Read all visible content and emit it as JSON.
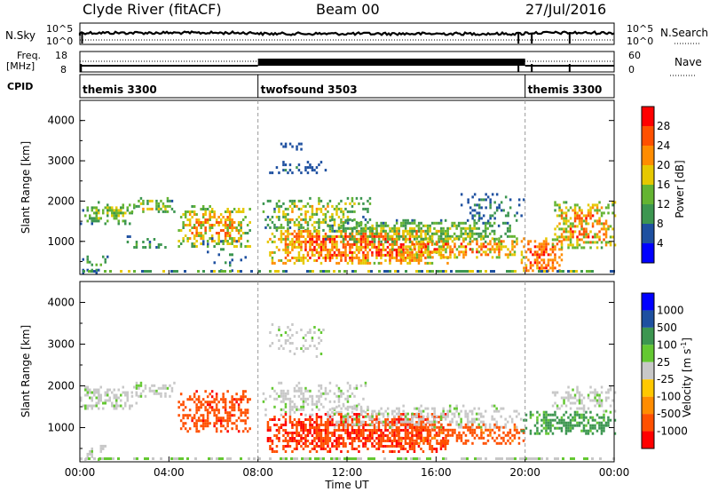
{
  "header": {
    "station": "Clyde River (fitACF)",
    "beam": "Beam 00",
    "date": "27/Jul/2016"
  },
  "nsky_panel": {
    "left_label": "N.Sky",
    "right_label": "N.Search",
    "y_ticks": [
      "10^5",
      "10^0"
    ]
  },
  "freq_panel": {
    "left_label_top": "Freq.",
    "left_label_bottom": "[MHz]",
    "right_label": "Nave",
    "left_ticks": [
      "18",
      "8"
    ],
    "right_ticks": [
      "60",
      "0"
    ]
  },
  "cpid_panel": {
    "label": "CPID",
    "modes": [
      {
        "name": "themis 3300",
        "start": 0
      },
      {
        "name": "twofsound 3503",
        "start": 8
      },
      {
        "name": "themis 3300",
        "start": 20
      }
    ]
  },
  "colors": {
    "power": [
      "#0000ff",
      "#1e50a0",
      "#3c9650",
      "#64b432",
      "#e6c800",
      "#ff8c00",
      "#ff5000",
      "#ff0000"
    ],
    "velocity": [
      "#ff0000",
      "#ff5000",
      "#ff8c00",
      "#ffc800",
      "#c8c8c8",
      "#64c832",
      "#3c9650",
      "#1e50a0",
      "#0000ff"
    ],
    "ground_scatter": "#808080"
  },
  "chart_data": [
    {
      "type": "heatmap",
      "name": "power",
      "ylabel": "Slant Range [km]",
      "xlabel": "",
      "y_ticks": [
        "1000",
        "2000",
        "3000",
        "4000"
      ],
      "ylim": [
        180,
        4500
      ],
      "xlim": [
        0,
        24
      ],
      "colorbar": {
        "label": "Power [dB]",
        "ticks": [
          "4",
          "8",
          "12",
          "16",
          "20",
          "24",
          "28"
        ],
        "range": [
          0,
          30
        ]
      },
      "regions": [
        {
          "t0": 0.0,
          "t1": 2.5,
          "r0": 1450,
          "r1": 2000,
          "power_lo": 4,
          "power_hi": 18,
          "density": 0.45
        },
        {
          "t0": 2.3,
          "t1": 4.2,
          "r0": 1750,
          "r1": 2100,
          "power_lo": 4,
          "power_hi": 20,
          "density": 0.5
        },
        {
          "t0": 0.1,
          "t1": 1.2,
          "r0": 250,
          "r1": 650,
          "power_lo": 4,
          "power_hi": 14,
          "density": 0.25
        },
        {
          "t0": 2.0,
          "t1": 4.0,
          "r0": 850,
          "r1": 1150,
          "power_lo": 4,
          "power_hi": 14,
          "density": 0.3
        },
        {
          "t0": 4.4,
          "t1": 7.6,
          "r0": 900,
          "r1": 1900,
          "power_lo": 6,
          "power_hi": 26,
          "density": 0.55
        },
        {
          "t0": 5.5,
          "t1": 7.5,
          "r0": 250,
          "r1": 1100,
          "power_lo": 4,
          "power_hi": 10,
          "density": 0.12
        },
        {
          "t0": 8.2,
          "t1": 13.0,
          "r0": 1300,
          "r1": 2100,
          "power_lo": 4,
          "power_hi": 20,
          "density": 0.45
        },
        {
          "t0": 8.4,
          "t1": 16.5,
          "r0": 450,
          "r1": 1350,
          "power_lo": 10,
          "power_hi": 30,
          "density": 0.7
        },
        {
          "t0": 11.0,
          "t1": 19.8,
          "r0": 1000,
          "r1": 1550,
          "power_lo": 4,
          "power_hi": 18,
          "density": 0.5
        },
        {
          "t0": 14.0,
          "t1": 19.9,
          "r0": 600,
          "r1": 1100,
          "power_lo": 8,
          "power_hi": 28,
          "density": 0.55
        },
        {
          "t0": 9.0,
          "t1": 10.0,
          "r0": 3300,
          "r1": 3450,
          "power_lo": 4,
          "power_hi": 8,
          "density": 0.6
        },
        {
          "t0": 8.5,
          "t1": 11.0,
          "r0": 2700,
          "r1": 3000,
          "power_lo": 4,
          "power_hi": 8,
          "density": 0.3
        },
        {
          "t0": 19.8,
          "t1": 21.6,
          "r0": 250,
          "r1": 1100,
          "power_lo": 14,
          "power_hi": 30,
          "density": 0.6
        },
        {
          "t0": 21.2,
          "t1": 24.0,
          "r0": 850,
          "r1": 2000,
          "power_lo": 6,
          "power_hi": 28,
          "density": 0.6
        },
        {
          "t0": 17.0,
          "t1": 20.0,
          "r0": 1500,
          "r1": 2200,
          "power_lo": 4,
          "power_hi": 10,
          "density": 0.25
        }
      ]
    },
    {
      "type": "heatmap",
      "name": "velocity",
      "ylabel": "Slant Range [km]",
      "xlabel": "Time UT",
      "y_ticks": [
        "1000",
        "2000",
        "3000",
        "4000"
      ],
      "x_ticks": [
        "00:00",
        "04:00",
        "08:00",
        "12:00",
        "16:00",
        "20:00",
        "00:00"
      ],
      "ylim": [
        180,
        4500
      ],
      "xlim": [
        0,
        24
      ],
      "colorbar": {
        "label": "Velocity [m s",
        "label_sup": "-1",
        "label_end": "]",
        "ticks": [
          "1000",
          "500",
          "100",
          "25",
          "-25",
          "-100",
          "-500",
          "-1000"
        ]
      },
      "regions": [
        {
          "t0": 0.0,
          "t1": 2.5,
          "r0": 1450,
          "r1": 2000,
          "vel": "gs",
          "density": 0.5
        },
        {
          "t0": 2.3,
          "t1": 4.2,
          "r0": 1750,
          "r1": 2100,
          "vel": "gs",
          "density": 0.45
        },
        {
          "t0": 4.4,
          "t1": 7.6,
          "r0": 900,
          "r1": 1900,
          "vel": "-300",
          "density": 0.55
        },
        {
          "t0": 0.1,
          "t1": 1.2,
          "r0": 250,
          "r1": 650,
          "vel": "gs",
          "density": 0.3
        },
        {
          "t0": 8.2,
          "t1": 13.0,
          "r0": 1300,
          "r1": 2100,
          "vel": "gs",
          "density": 0.35
        },
        {
          "t0": 8.4,
          "t1": 16.5,
          "r0": 450,
          "r1": 1350,
          "vel": "-400",
          "density": 0.7
        },
        {
          "t0": 11.0,
          "t1": 19.8,
          "r0": 1000,
          "r1": 1550,
          "vel": "gs",
          "density": 0.45
        },
        {
          "t0": 14.0,
          "t1": 19.9,
          "r0": 600,
          "r1": 1100,
          "vel": "-200",
          "density": 0.5
        },
        {
          "t0": 19.8,
          "t1": 24.0,
          "r0": 850,
          "r1": 1400,
          "vel": "150",
          "density": 0.6
        },
        {
          "t0": 21.2,
          "t1": 24.0,
          "r0": 1400,
          "r1": 2000,
          "vel": "gs",
          "density": 0.45
        },
        {
          "t0": 8.5,
          "t1": 11.0,
          "r0": 2700,
          "r1": 3500,
          "vel": "gs",
          "density": 0.25
        }
      ]
    }
  ]
}
